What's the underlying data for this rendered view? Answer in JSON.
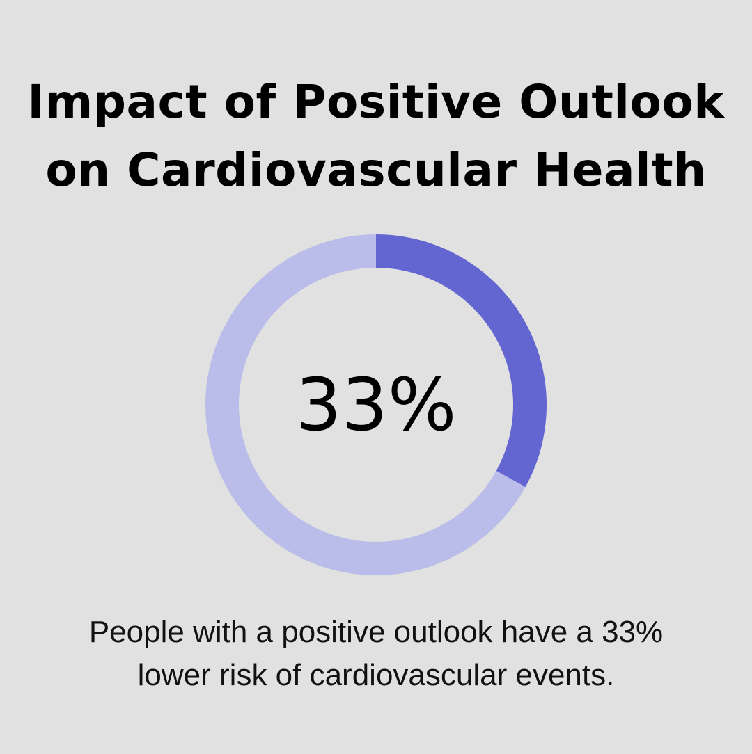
{
  "chart_data": {
    "type": "pie",
    "variant": "donut",
    "title": "Impact of Positive Outlook on Cardiovascular Health",
    "values": [
      33,
      67
    ],
    "center_label": "33%",
    "colors": {
      "highlight": "#6366d1",
      "remainder": "#babdea",
      "background": "#e0e1e0"
    },
    "caption_lines": [
      "People with a positive outlook have a 33%",
      "lower risk of cardiovascular events."
    ]
  }
}
